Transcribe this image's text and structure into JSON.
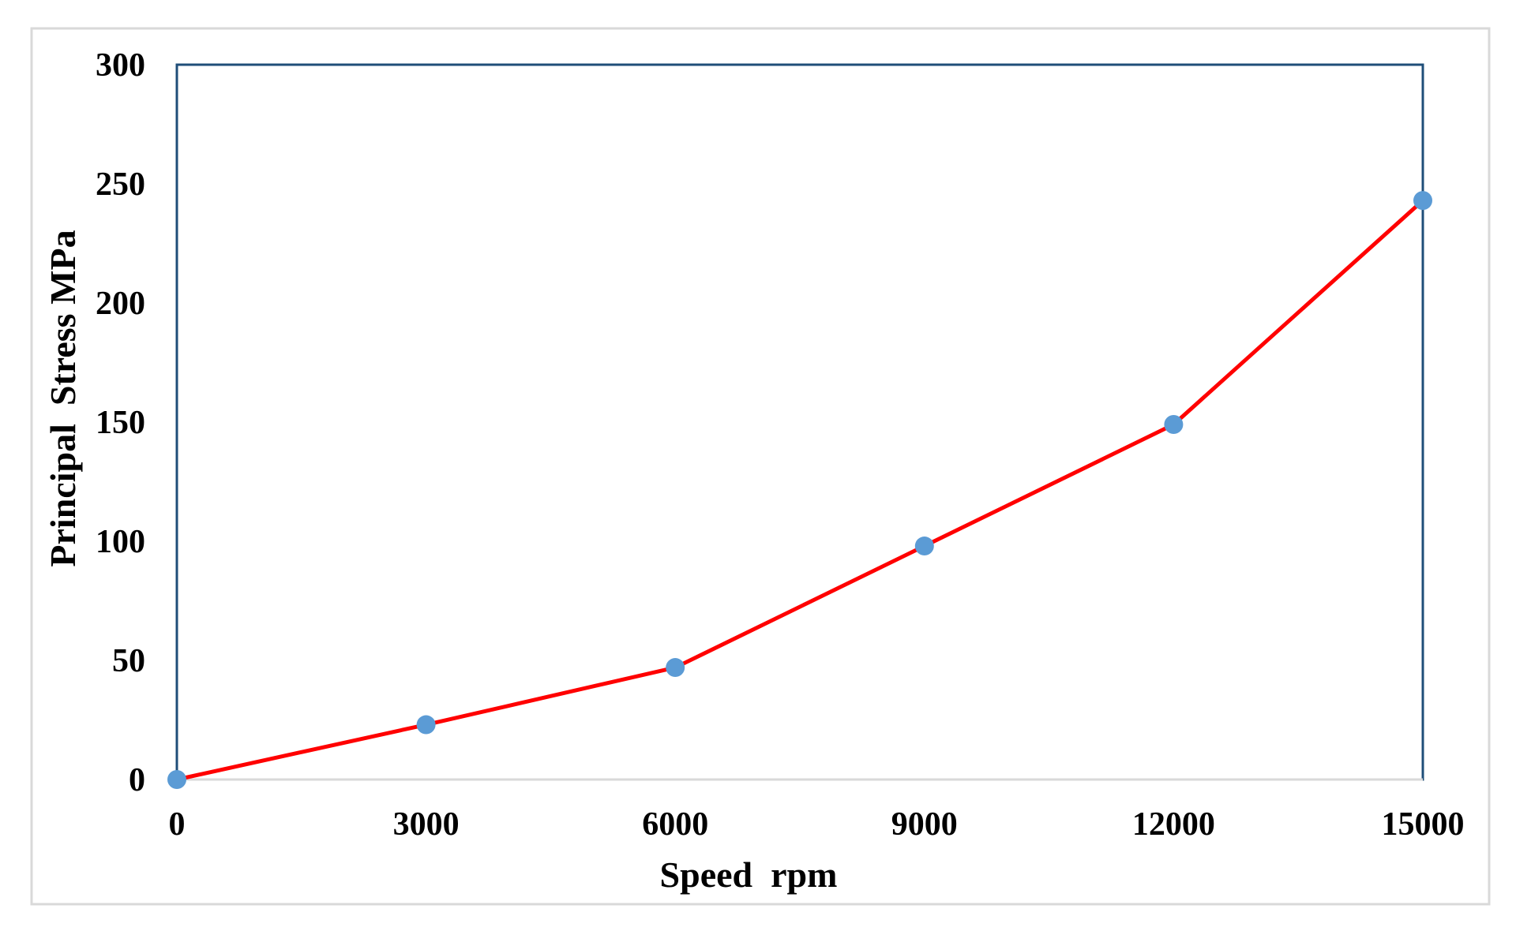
{
  "chart_data": {
    "type": "line",
    "title": "",
    "xlabel": "Speed  rpm",
    "ylabel": "Principal  Stress MPa",
    "x": [
      0,
      3000,
      6000,
      9000,
      12000,
      15000
    ],
    "series": [
      {
        "values": [
          0,
          23,
          47,
          98,
          149,
          243
        ]
      }
    ],
    "xlim": [
      0,
      15000
    ],
    "ylim": [
      0,
      300
    ],
    "x_ticks": [
      "0",
      "3000",
      "6000",
      "9000",
      "12000",
      "15000"
    ],
    "y_ticks": [
      "0",
      "50",
      "100",
      "150",
      "200",
      "250",
      "300"
    ],
    "grid": false,
    "legend": "none",
    "colors": {
      "line": "#ff0000",
      "marker": "#5b9bd5",
      "plot_border": "#1f4e79",
      "axis": "#d9d9d9",
      "frame": "#d9d9d9"
    }
  }
}
